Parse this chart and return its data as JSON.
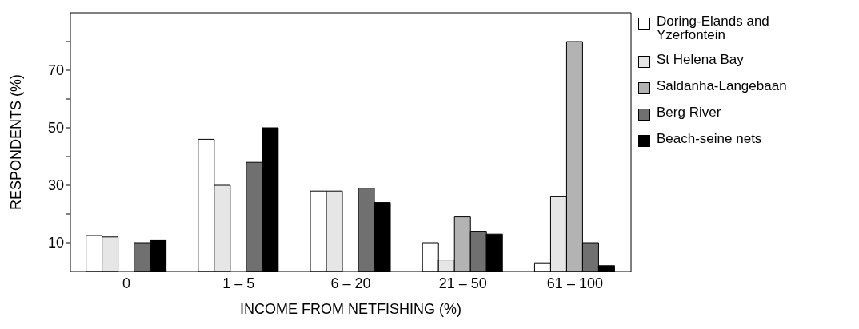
{
  "chart_data": {
    "type": "bar",
    "xlabel": "INCOME FROM NETFISHING (%)",
    "ylabel": "RESPONDENTS (%)",
    "categories": [
      "0",
      "1 – 5",
      "6 – 20",
      "21 – 50",
      "61 – 100"
    ],
    "series": [
      {
        "name": "Doring-Elands and Yzerfontein",
        "color": "#ffffff",
        "values": [
          12.5,
          46,
          28,
          10,
          3
        ]
      },
      {
        "name": "St Helena Bay",
        "color": "#e6e6e6",
        "values": [
          12,
          30,
          28,
          4,
          26
        ]
      },
      {
        "name": "Saldanha-Langebaan",
        "color": "#b3b3b3",
        "values": [
          null,
          null,
          null,
          19,
          80
        ]
      },
      {
        "name": "Berg River",
        "color": "#707070",
        "values": [
          10,
          38,
          29,
          14,
          10
        ]
      },
      {
        "name": "Beach-seine nets",
        "color": "#000000",
        "values": [
          11,
          50,
          24,
          13,
          2
        ]
      }
    ],
    "ylim": [
      0,
      90
    ],
    "yticks": [
      10,
      {
        "value": 20,
        "label": null
      },
      30,
      {
        "value": 40,
        "label": null
      },
      50,
      {
        "value": 60,
        "label": null
      },
      70,
      {
        "value": 80,
        "label": null
      }
    ],
    "grid": false,
    "legend": "right"
  }
}
